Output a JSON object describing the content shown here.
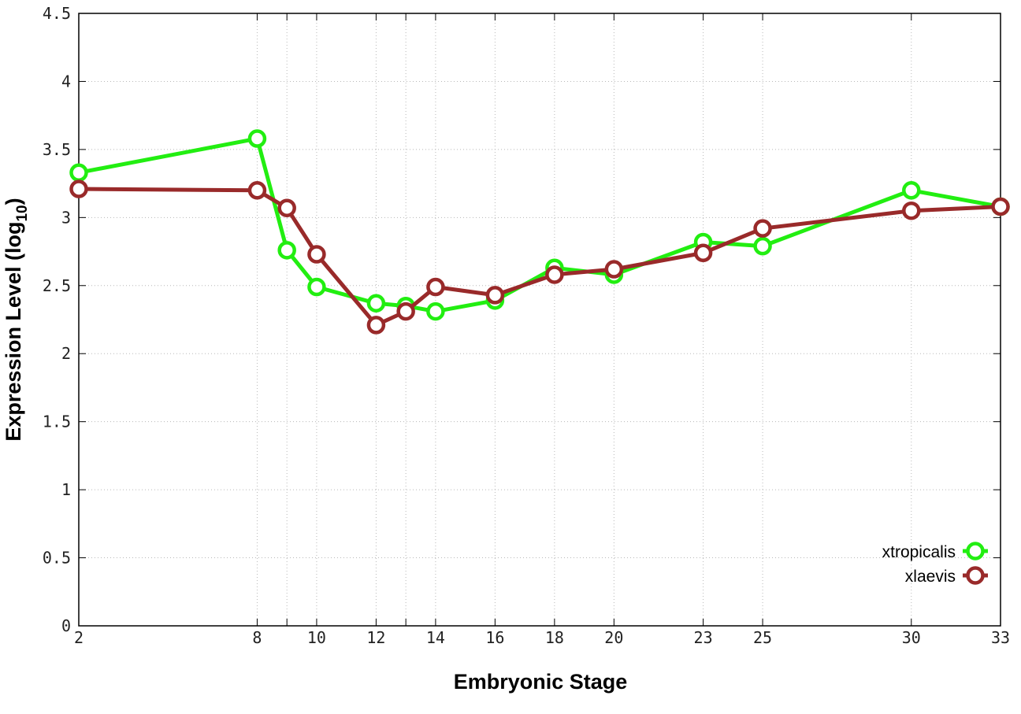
{
  "chart_data": {
    "type": "line",
    "xlabel": "Embryonic Stage",
    "ylabel": "Expression Level (log",
    "ylabel_subscript": "10",
    "ylabel_close": ")",
    "ylim": [
      0,
      4.5
    ],
    "y_ticks": [
      0,
      0.5,
      1,
      1.5,
      2,
      2.5,
      3,
      3.5,
      4,
      4.5
    ],
    "y_tick_labels": [
      "0",
      "0.5",
      "1",
      "1.5",
      "2",
      "2.5",
      "3",
      "3.5",
      "4",
      "4.5"
    ],
    "categories": [
      "2",
      "8",
      "9",
      "10",
      "12",
      "13",
      "14",
      "16",
      "18",
      "20",
      "23",
      "25",
      "30",
      "33"
    ],
    "x_tick_labels": [
      "2",
      "8",
      "",
      "10",
      "12",
      "",
      "14",
      "16",
      "18",
      "20",
      "23",
      "25",
      "30",
      "33"
    ],
    "grid": true,
    "legend_position": "bottom-right",
    "series": [
      {
        "name": "xtropicalis",
        "color": "#22ee11",
        "values": [
          3.33,
          3.58,
          2.76,
          2.49,
          2.37,
          2.35,
          2.31,
          2.39,
          2.63,
          2.58,
          2.82,
          2.79,
          3.2,
          3.08
        ]
      },
      {
        "name": "xlaevis",
        "color": "#992a2a",
        "values": [
          3.21,
          3.2,
          3.07,
          2.73,
          2.21,
          2.31,
          2.49,
          2.43,
          2.58,
          2.62,
          2.74,
          2.92,
          3.05,
          3.08
        ]
      }
    ]
  }
}
